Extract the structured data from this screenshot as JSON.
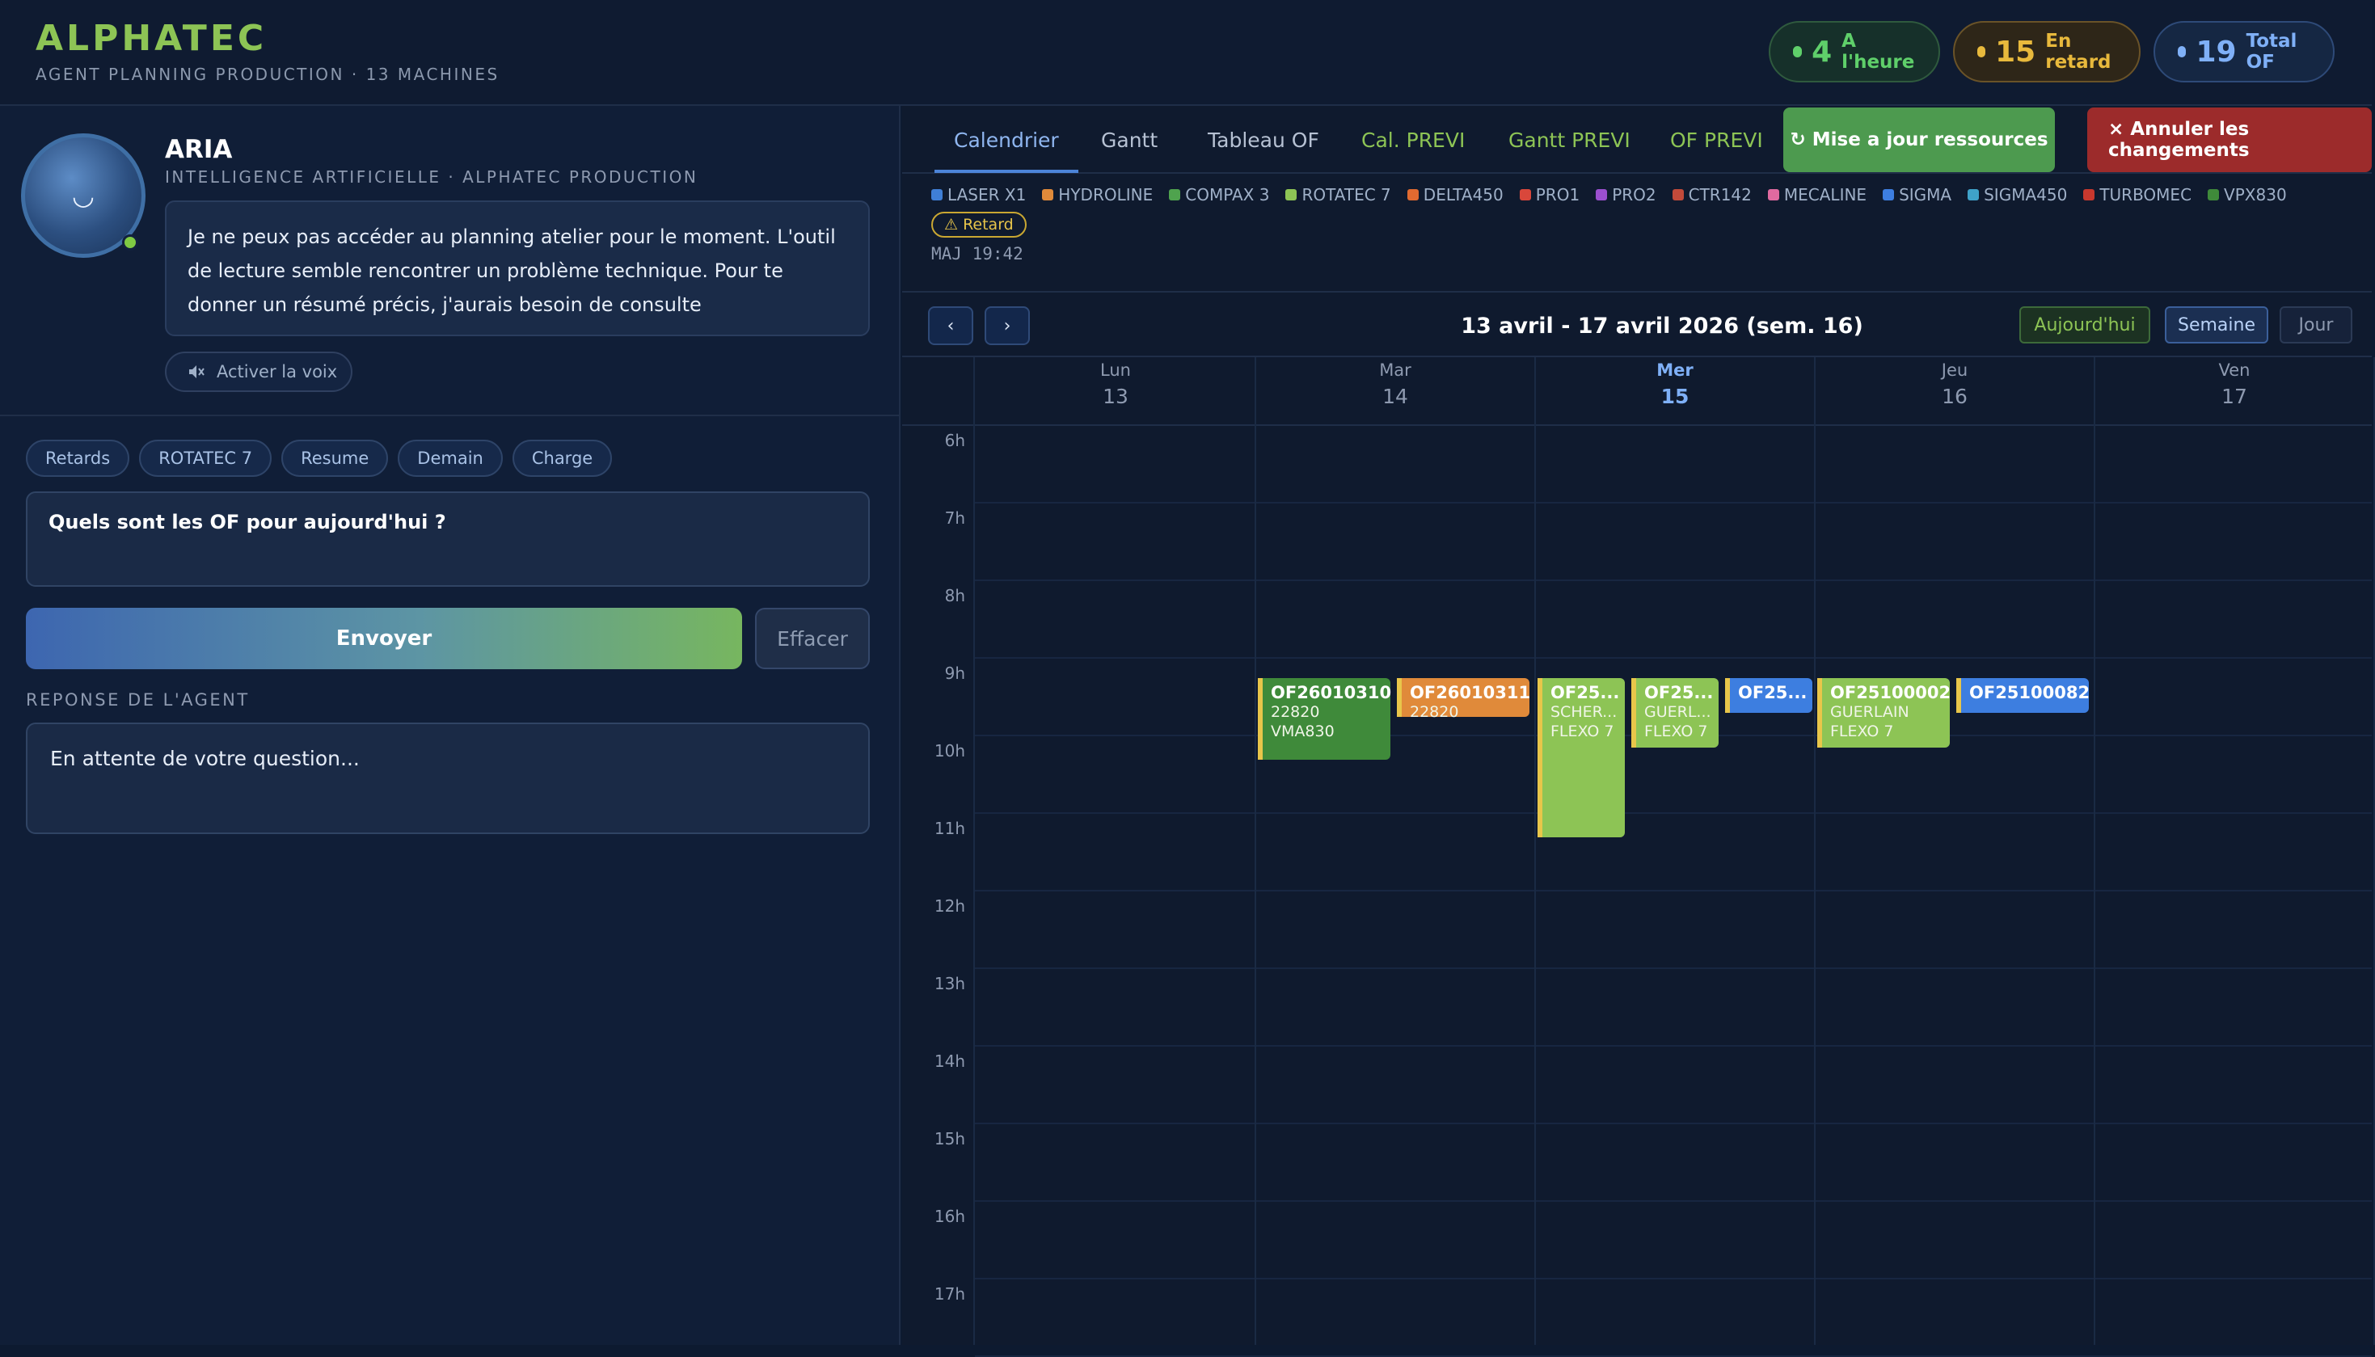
{
  "header": {
    "brand": "ALPHATEC",
    "subtitle": "AGENT PLANNING PRODUCTION · 13 MACHINES",
    "stats": [
      {
        "value": "4",
        "label": "A l'heure",
        "color": "#5fcf6a"
      },
      {
        "value": "15",
        "label": "En retard",
        "color": "#e8b93c"
      },
      {
        "value": "19",
        "label": "Total OF",
        "color": "#7fb0f7"
      }
    ]
  },
  "agent": {
    "name": "ARIA",
    "subtitle": "INTELLIGENCE ARTIFICIELLE · ALPHATEC PRODUCTION",
    "message": "Je ne peux pas accéder au planning atelier pour le moment. L'outil de lecture semble rencontrer un problème technique. Pour te donner un résumé précis, j'aurais besoin de consulte",
    "voice_label": "Activer la voix",
    "avatar_face": "◡"
  },
  "chips": [
    "Retards",
    "ROTATEC 7",
    "Resume",
    "Demain",
    "Charge"
  ],
  "question": "Quels sont les OF pour aujourd'hui ?",
  "send_label": "Envoyer",
  "clear_label": "Effacer",
  "response_label": "REPONSE DE L'AGENT",
  "response_text": "En attente de votre question...",
  "tabs": [
    "Calendrier",
    "Gantt",
    "Tableau OF",
    "Cal. PREVI",
    "Gantt PREVI",
    "OF PREVI"
  ],
  "actions": {
    "update": "↻ Mise a jour ressources",
    "cancel": "× Annuler les changements"
  },
  "legend": [
    {
      "name": "LASER X1",
      "color": "#3f7fd6"
    },
    {
      "name": "HYDROLINE",
      "color": "#e08a3a"
    },
    {
      "name": "COMPAX 3",
      "color": "#4fa34e"
    },
    {
      "name": "ROTATEC 7",
      "color": "#8dc455"
    },
    {
      "name": "DELTA450",
      "color": "#e06a30"
    },
    {
      "name": "PRO1",
      "color": "#d9473b"
    },
    {
      "name": "PRO2",
      "color": "#9b4fcf"
    },
    {
      "name": "CTR142",
      "color": "#c24a3a"
    },
    {
      "name": "MECALINE",
      "color": "#e06aa0"
    },
    {
      "name": "SIGMA",
      "color": "#3d7ee0"
    },
    {
      "name": "SIGMA450",
      "color": "#3fa2c9"
    },
    {
      "name": "TURBOMEC",
      "color": "#c8382e"
    },
    {
      "name": "VPX830",
      "color": "#3f8a3a"
    }
  ],
  "retard_badge": "⚠ Retard",
  "maj": "MAJ 19:42",
  "calendar": {
    "prev": "‹",
    "next": "›",
    "range": "13 avril - 17 avril 2026 (sem. 16)",
    "views": [
      "Aujourd'hui",
      "Semaine",
      "Jour"
    ],
    "days": [
      {
        "name": "Lun",
        "num": "13"
      },
      {
        "name": "Mar",
        "num": "14"
      },
      {
        "name": "Mer",
        "num": "15"
      },
      {
        "name": "Jeu",
        "num": "16"
      },
      {
        "name": "Ven",
        "num": "17"
      }
    ],
    "hours": [
      "6h",
      "7h",
      "8h",
      "9h",
      "10h",
      "11h",
      "12h",
      "13h",
      "14h",
      "15h",
      "16h",
      "17h"
    ],
    "events": [
      {
        "title": "OF26010310",
        "lines": [
          "22820",
          "VMA830"
        ],
        "color": "#3f8a3a",
        "bar": "#e8c64a",
        "day": 1,
        "col": 0,
        "start": 9.25,
        "end": 10.3
      },
      {
        "title": "OF26010311",
        "lines": [
          "22820"
        ],
        "color": "#e08a3a",
        "bar": "#e8c64a",
        "day": 1,
        "col": 1,
        "start": 9.25,
        "end": 9.75
      },
      {
        "title": "OF25...",
        "lines": [
          "SCHER...",
          "FLEXO 7"
        ],
        "color": "#8dc455",
        "bar": "#e8c64a",
        "day": 2,
        "col": 0,
        "start": 9.25,
        "end": 11.3
      },
      {
        "title": "OF25...",
        "lines": [
          "GUERL...",
          "FLEXO 7"
        ],
        "color": "#8dc455",
        "bar": "#e8c64a",
        "day": 2,
        "col": 1,
        "start": 9.25,
        "end": 10.15
      },
      {
        "title": "OF25...",
        "lines": [],
        "color": "#3d7ee0",
        "bar": "#e8c64a",
        "day": 2,
        "col": 2,
        "start": 9.25,
        "end": 9.7
      },
      {
        "title": "OF25100002",
        "lines": [
          "GUERLAIN",
          "FLEXO 7"
        ],
        "color": "#8dc455",
        "bar": "#e8c64a",
        "day": 3,
        "col": 0,
        "start": 9.25,
        "end": 10.15
      },
      {
        "title": "OF25100082",
        "lines": [],
        "color": "#3d7ee0",
        "bar": "#e8c64a",
        "day": 3,
        "col": 1,
        "start": 9.25,
        "end": 9.7
      }
    ]
  }
}
